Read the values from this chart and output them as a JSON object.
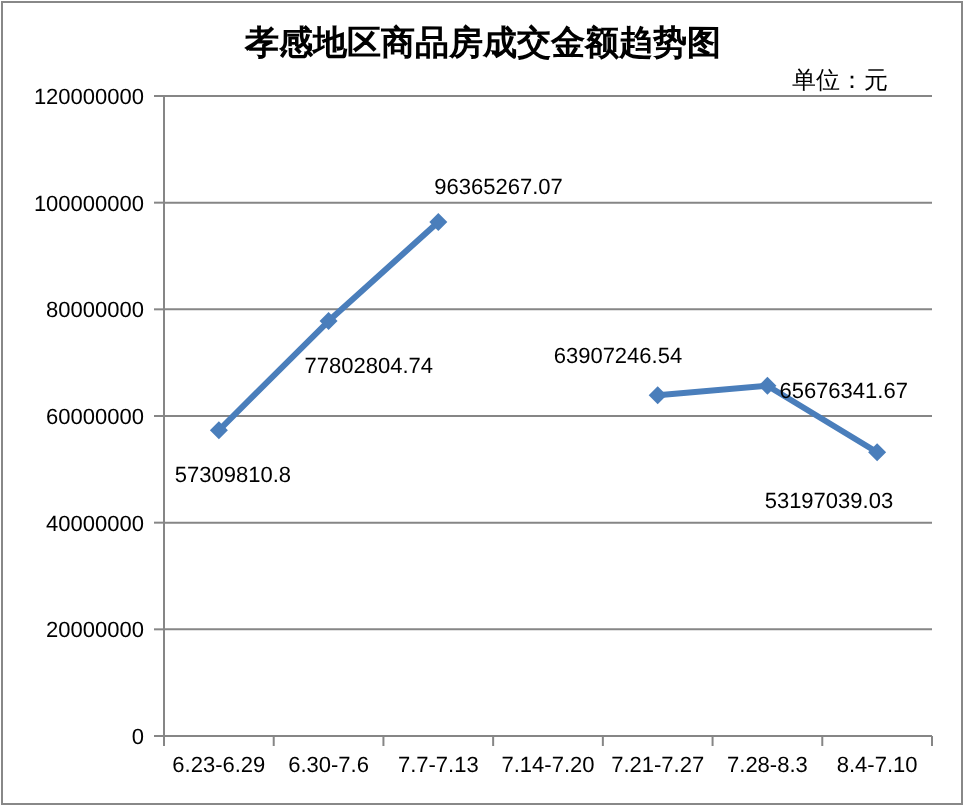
{
  "chart_data": {
    "type": "line",
    "title": "孝感地区商品房成交金额趋势图",
    "categories": [
      "6.23-6.29",
      "6.30-7.6",
      "7.7-7.13",
      "7.14-7.20",
      "7.21-7.27",
      "7.28-8.3",
      "8.4-7.10"
    ],
    "series": [
      {
        "color": "#4a7ebb",
        "values": [
          57309810.8,
          77802804.74,
          96365267.07,
          null,
          63907246.54,
          65676341.67,
          53197039.03
        ]
      }
    ],
    "ylim": [
      0,
      120000000
    ],
    "yticks": [
      0,
      20000000,
      40000000,
      60000000,
      80000000,
      100000000,
      120000000
    ],
    "grid": "y",
    "marker": "diamond",
    "line_style": "solid",
    "data_labels": true,
    "annotations": [
      "单位：元"
    ]
  }
}
